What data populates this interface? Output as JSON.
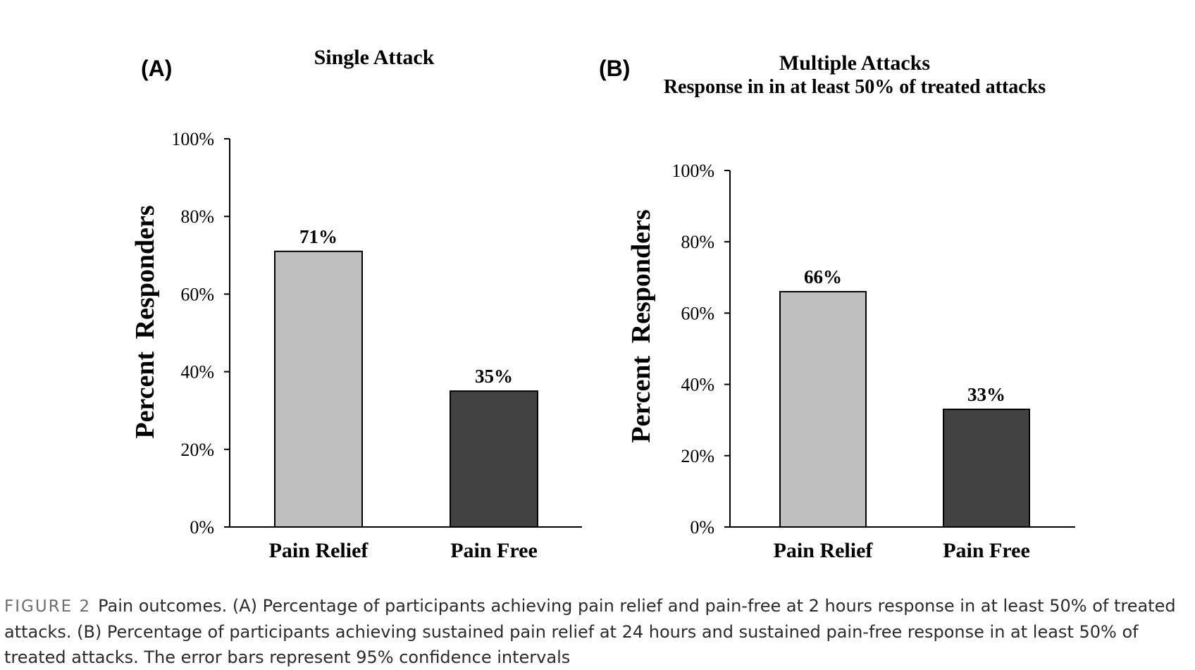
{
  "colors": {
    "bar_pain_relief": "#c0c0c0",
    "bar_pain_free": "#424242",
    "axis": "#000000",
    "caption_label": "#6e6e6e"
  },
  "chart_data": [
    {
      "type": "bar",
      "panel_label": "(A)",
      "title": "Single Attack",
      "subtitle": "",
      "ylabel": "Percent Responders",
      "xlabel": "",
      "categories": [
        "Pain Relief",
        "Pain Free"
      ],
      "values": [
        71,
        35
      ],
      "data_labels": [
        "71%",
        "35%"
      ],
      "ylim": [
        0,
        100
      ],
      "yticks": [
        0,
        20,
        40,
        60,
        80,
        100
      ],
      "ytick_labels": [
        "0%",
        "20%",
        "40%",
        "60%",
        "80%",
        "100%"
      ],
      "grid": false,
      "legend": "none"
    },
    {
      "type": "bar",
      "panel_label": "(B)",
      "title": "Multiple Attacks",
      "subtitle": "Response in in at least 50% of treated attacks",
      "ylabel": "Percent Responders",
      "xlabel": "",
      "categories": [
        "Pain Relief",
        "Pain Free"
      ],
      "values": [
        66,
        33
      ],
      "data_labels": [
        "66%",
        "33%"
      ],
      "ylim": [
        0,
        100
      ],
      "yticks": [
        0,
        20,
        40,
        60,
        80,
        100
      ],
      "ytick_labels": [
        "0%",
        "20%",
        "40%",
        "60%",
        "80%",
        "100%"
      ],
      "grid": false,
      "legend": "none"
    }
  ],
  "caption": {
    "label": "FIGURE 2",
    "text": "Pain outcomes. (A) Percentage of participants achieving pain relief and pain-free at 2 hours response in at least 50% of treated attacks. (B) Percentage of participants achieving sustained pain relief at 24 hours and sustained pain-free response in at least 50% of treated attacks. The error bars represent 95% confidence intervals"
  }
}
